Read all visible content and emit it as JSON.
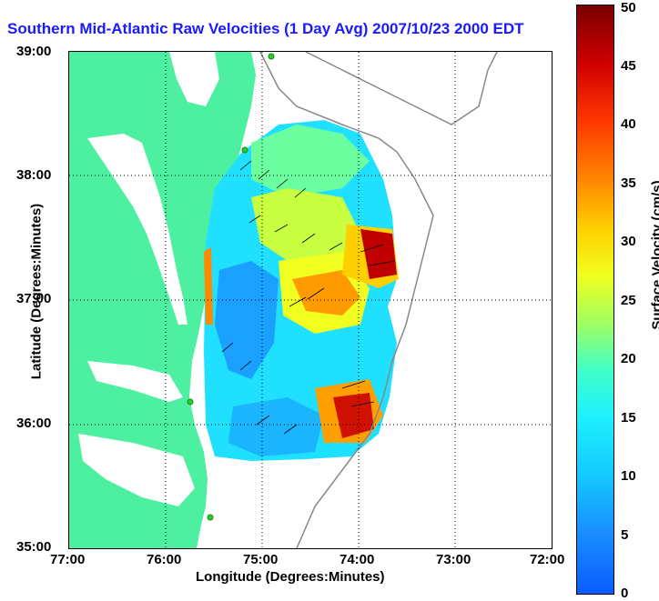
{
  "title": "Southern Mid-Atlantic Raw Velocities (1 Day Avg) 2007/10/23 2000 EDT",
  "y_axis": {
    "label": "Latitude (Degrees:Minutes)",
    "ticks": [
      "39:00",
      "38:00",
      "37:00",
      "36:00",
      "35:00"
    ]
  },
  "x_axis": {
    "label": "Longitude (Degrees:Minutes)",
    "ticks": [
      "77:00",
      "76:00",
      "75:00",
      "74:00",
      "73:00",
      "72:00"
    ]
  },
  "colorbar": {
    "label": "Surface Velocity (cm/s)",
    "ticks": [
      "50",
      "45",
      "40",
      "35",
      "30",
      "25",
      "20",
      "15",
      "10",
      "5",
      "0"
    ]
  },
  "colors": {
    "land": "#4cf0a0",
    "title": "#1a1aff"
  }
}
